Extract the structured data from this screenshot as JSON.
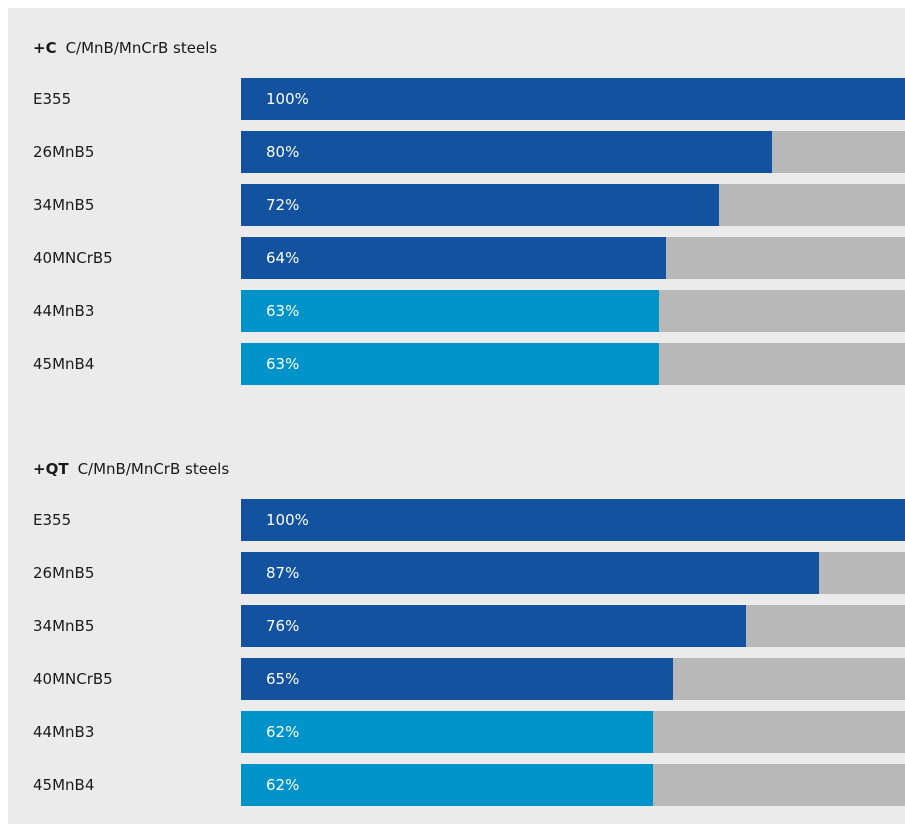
{
  "colors": {
    "primary": "#13529f",
    "secondary": "#0093c9",
    "track": "#b8b8b8",
    "panel": "#ebebeb"
  },
  "chart_data": [
    {
      "type": "bar",
      "orientation": "horizontal",
      "title_prefix": "+C",
      "title": "C/MnB/MnCrB steels",
      "xlim": [
        0,
        100
      ],
      "categories": [
        "E355",
        "26MnB5",
        "34MnB5",
        "40MNCrB5",
        "44MnB3",
        "45MnB4"
      ],
      "values": [
        100,
        80,
        72,
        64,
        63,
        63
      ],
      "value_labels": [
        "100%",
        "80%",
        "72%",
        "64%",
        "63%",
        "63%"
      ],
      "bar_colors": [
        "primary",
        "primary",
        "primary",
        "primary",
        "secondary",
        "secondary"
      ]
    },
    {
      "type": "bar",
      "orientation": "horizontal",
      "title_prefix": "+QT",
      "title": "C/MnB/MnCrB steels",
      "xlim": [
        0,
        100
      ],
      "categories": [
        "E355",
        "26MnB5",
        "34MnB5",
        "40MNCrB5",
        "44MnB3",
        "45MnB4"
      ],
      "values": [
        100,
        87,
        76,
        65,
        62,
        62
      ],
      "value_labels": [
        "100%",
        "87%",
        "76%",
        "65%",
        "62%",
        "62%"
      ],
      "bar_colors": [
        "primary",
        "primary",
        "primary",
        "primary",
        "secondary",
        "secondary"
      ]
    }
  ]
}
